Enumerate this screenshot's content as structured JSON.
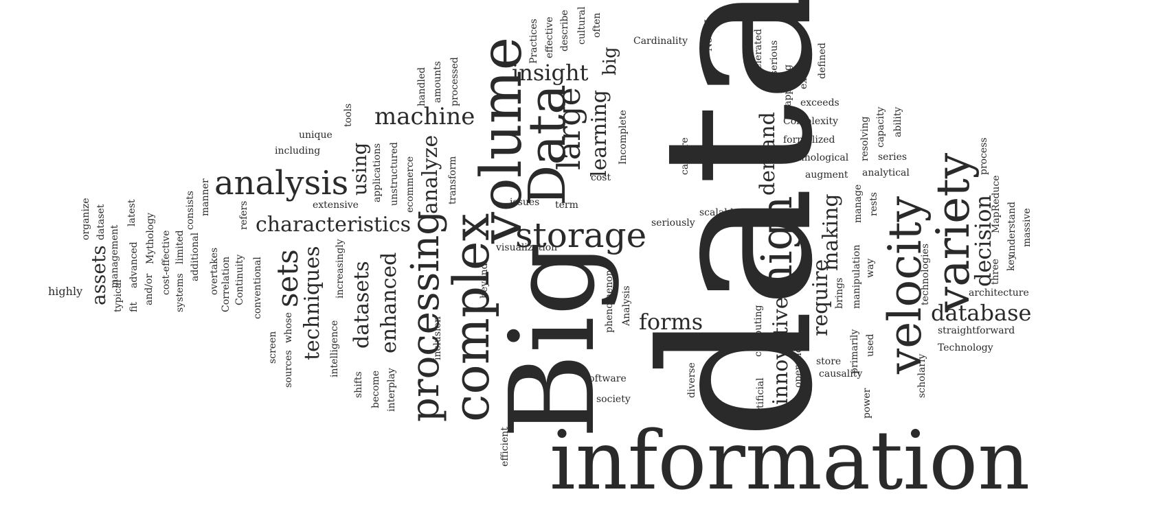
{
  "word_cloud": {
    "words": [
      {
        "text": "data",
        "weight": 1.0
      },
      {
        "text": "Big",
        "weight": 0.78
      },
      {
        "text": "information",
        "weight": 0.62
      },
      {
        "text": "volume",
        "weight": 0.42
      },
      {
        "text": "complex",
        "weight": 0.42
      },
      {
        "text": "Data",
        "weight": 0.42
      },
      {
        "text": "velocity",
        "weight": 0.38
      },
      {
        "text": "variety",
        "weight": 0.38
      },
      {
        "text": "processing",
        "weight": 0.36
      },
      {
        "text": "high",
        "weight": 0.34
      },
      {
        "text": "storage",
        "weight": 0.32
      },
      {
        "text": "analysis",
        "weight": 0.32
      },
      {
        "text": "large",
        "weight": 0.3
      },
      {
        "text": "sets",
        "weight": 0.28
      },
      {
        "text": "characteristics",
        "weight": 0.24
      },
      {
        "text": "database",
        "weight": 0.24
      },
      {
        "text": "machine",
        "weight": 0.22
      },
      {
        "text": "insight",
        "weight": 0.22
      },
      {
        "text": "forms",
        "weight": 0.22
      },
      {
        "text": "decision",
        "weight": 0.22
      },
      {
        "text": "innovative",
        "weight": 0.22
      },
      {
        "text": "enhanced",
        "weight": 0.22
      },
      {
        "text": "datasets",
        "weight": 0.22
      },
      {
        "text": "techniques",
        "weight": 0.22
      },
      {
        "text": "learning",
        "weight": 0.22
      },
      {
        "text": "demand",
        "weight": 0.22
      },
      {
        "text": "require",
        "weight": 0.22
      },
      {
        "text": "making",
        "weight": 0.22
      },
      {
        "text": "analyze",
        "weight": 0.22
      },
      {
        "text": "using",
        "weight": 0.2
      },
      {
        "text": "assets",
        "weight": 0.2
      },
      {
        "text": "big",
        "weight": 0.18
      },
      {
        "text": "highly",
        "weight": 0.1
      },
      {
        "text": "organize",
        "weight": 0.08
      },
      {
        "text": "dataset",
        "weight": 0.08
      },
      {
        "text": "management",
        "weight": 0.08
      },
      {
        "text": "latest",
        "weight": 0.08
      },
      {
        "text": "typical",
        "weight": 0.08
      },
      {
        "text": "advanced",
        "weight": 0.08
      },
      {
        "text": "fit",
        "weight": 0.08
      },
      {
        "text": "and/or",
        "weight": 0.08
      },
      {
        "text": "Mythology",
        "weight": 0.08
      },
      {
        "text": "cost-effective",
        "weight": 0.08
      },
      {
        "text": "systems",
        "weight": 0.08
      },
      {
        "text": "limited",
        "weight": 0.08
      },
      {
        "text": "additional",
        "weight": 0.08
      },
      {
        "text": "consists",
        "weight": 0.08
      },
      {
        "text": "manner",
        "weight": 0.08
      },
      {
        "text": "overtakes",
        "weight": 0.08
      },
      {
        "text": "Correlation",
        "weight": 0.08
      },
      {
        "text": "Continuity",
        "weight": 0.08
      },
      {
        "text": "refers",
        "weight": 0.08
      },
      {
        "text": "conventional",
        "weight": 0.08
      },
      {
        "text": "screen",
        "weight": 0.08
      },
      {
        "text": "sources",
        "weight": 0.08
      },
      {
        "text": "whose",
        "weight": 0.08
      },
      {
        "text": "including",
        "weight": 0.08
      },
      {
        "text": "unique",
        "weight": 0.08
      },
      {
        "text": "extensive",
        "weight": 0.08
      },
      {
        "text": "increasingly",
        "weight": 0.08
      },
      {
        "text": "intelligence",
        "weight": 0.08
      },
      {
        "text": "shifts",
        "weight": 0.08
      },
      {
        "text": "become",
        "weight": 0.08
      },
      {
        "text": "interplay",
        "weight": 0.08
      },
      {
        "text": "inclusion",
        "weight": 0.08
      },
      {
        "text": "tools",
        "weight": 0.08
      },
      {
        "text": "applications",
        "weight": 0.08
      },
      {
        "text": "unstructured",
        "weight": 0.08
      },
      {
        "text": "ecommerce",
        "weight": 0.08
      },
      {
        "text": "transform",
        "weight": 0.08
      },
      {
        "text": "handled",
        "weight": 0.08
      },
      {
        "text": "amounts",
        "weight": 0.08
      },
      {
        "text": "processed",
        "weight": 0.08
      },
      {
        "text": "beyond",
        "weight": 0.08
      },
      {
        "text": "issues",
        "weight": 0.08
      },
      {
        "text": "term",
        "weight": 0.08
      },
      {
        "text": "visualization",
        "weight": 0.08
      },
      {
        "text": "cost",
        "weight": 0.08
      },
      {
        "text": "Incomplete",
        "weight": 0.08
      },
      {
        "text": "Practices",
        "weight": 0.08
      },
      {
        "text": "effective",
        "weight": 0.08
      },
      {
        "text": "describe",
        "weight": 0.08
      },
      {
        "text": "cultural",
        "weight": 0.08
      },
      {
        "text": "often",
        "weight": 0.08
      },
      {
        "text": "Cardinality",
        "weight": 0.08
      },
      {
        "text": "NoSQL",
        "weight": 0.08
      },
      {
        "text": "phenomenon",
        "weight": 0.08
      },
      {
        "text": "Analysis",
        "weight": 0.08
      },
      {
        "text": "capture",
        "weight": 0.08
      },
      {
        "text": "seriously",
        "weight": 0.08
      },
      {
        "text": "scalable",
        "weight": 0.08
      },
      {
        "text": "software",
        "weight": 0.08
      },
      {
        "text": "society",
        "weight": 0.08
      },
      {
        "text": "efficient",
        "weight": 0.08
      },
      {
        "text": "diverse",
        "weight": 0.08
      },
      {
        "text": "accelerated",
        "weight": 0.08
      },
      {
        "text": "serious",
        "weight": 0.08
      },
      {
        "text": "applying",
        "weight": 0.08
      },
      {
        "text": "existing",
        "weight": 0.08
      },
      {
        "text": "defined",
        "weight": 0.08
      },
      {
        "text": "exceeds",
        "weight": 0.08
      },
      {
        "text": "Complexity",
        "weight": 0.08
      },
      {
        "text": "formalized",
        "weight": 0.08
      },
      {
        "text": "technological",
        "weight": 0.08
      },
      {
        "text": "augment",
        "weight": 0.08
      },
      {
        "text": "resolving",
        "weight": 0.08
      },
      {
        "text": "capacity",
        "weight": 0.08
      },
      {
        "text": "ability",
        "weight": 0.08
      },
      {
        "text": "series",
        "weight": 0.08
      },
      {
        "text": "analytical",
        "weight": 0.08
      },
      {
        "text": "process",
        "weight": 0.08
      },
      {
        "text": "manage",
        "weight": 0.08
      },
      {
        "text": "rests",
        "weight": 0.08
      },
      {
        "text": "MapReduce",
        "weight": 0.08
      },
      {
        "text": "understand",
        "weight": 0.08
      },
      {
        "text": "massive",
        "weight": 0.08
      },
      {
        "text": "key",
        "weight": 0.08
      },
      {
        "text": "three",
        "weight": 0.08
      },
      {
        "text": "technologies",
        "weight": 0.08
      },
      {
        "text": "architecture",
        "weight": 0.08
      },
      {
        "text": "straightforward",
        "weight": 0.08
      },
      {
        "text": "Technology",
        "weight": 0.08
      },
      {
        "text": "scholarly",
        "weight": 0.08
      },
      {
        "text": "size",
        "weight": 0.08
      },
      {
        "text": "way",
        "weight": 0.08
      },
      {
        "text": "brings",
        "weight": 0.08
      },
      {
        "text": "manipulation",
        "weight": 0.08
      },
      {
        "text": "primarily",
        "weight": 0.08
      },
      {
        "text": "used",
        "weight": 0.08
      },
      {
        "text": "store",
        "weight": 0.08
      },
      {
        "text": "causality",
        "weight": 0.08
      },
      {
        "text": "power",
        "weight": 0.08
      },
      {
        "text": "computing",
        "weight": 0.08
      },
      {
        "text": "operations",
        "weight": 0.08
      },
      {
        "text": "artificial",
        "weight": 0.08
      }
    ]
  }
}
